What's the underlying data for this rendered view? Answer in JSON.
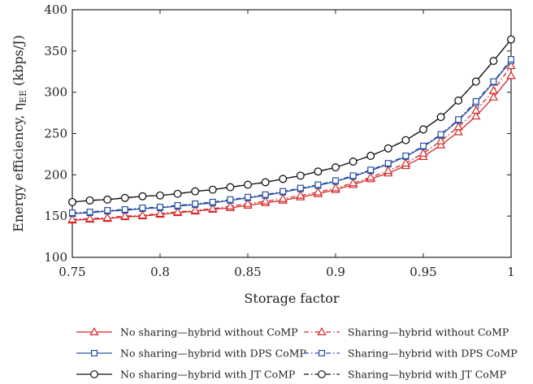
{
  "chart_data": {
    "type": "line",
    "title": "",
    "xlabel": "Storage factor",
    "ylabel": "Energy efficiency, η",
    "ylabel_sub": "EE",
    "ylabel_unit": "(kbps/J)",
    "xlim": [
      0.75,
      1.0
    ],
    "ylim": [
      100,
      400
    ],
    "x_ticks": [
      "0.75",
      "0.8",
      "0.85",
      "0.9",
      "0.95",
      "1"
    ],
    "y_ticks": [
      "100",
      "150",
      "200",
      "250",
      "300",
      "350",
      "400"
    ],
    "grid": false,
    "legend_position": "bottom",
    "x": [
      0.75,
      0.76,
      0.77,
      0.78,
      0.79,
      0.8,
      0.81,
      0.82,
      0.83,
      0.84,
      0.85,
      0.86,
      0.87,
      0.88,
      0.89,
      0.9,
      0.91,
      0.92,
      0.93,
      0.94,
      0.95,
      0.96,
      0.97,
      0.98,
      0.99,
      1.0
    ],
    "series": [
      {
        "name": "No sharing—hybrid without CoMP",
        "color": "#d62728",
        "marker": "triangle",
        "dash": "solid",
        "values": [
          145,
          146,
          147,
          149,
          150,
          152,
          154,
          156,
          158,
          160,
          163,
          166,
          169,
          173,
          177,
          182,
          188,
          195,
          202,
          211,
          222,
          236,
          252,
          271,
          294,
          320
        ]
      },
      {
        "name": "Sharing—hybrid without CoMP",
        "color": "#d62728",
        "marker": "triangle",
        "dash": "dashdot",
        "values": [
          146,
          147,
          148,
          150,
          151,
          153,
          155,
          157,
          159,
          162,
          165,
          168,
          171,
          175,
          179,
          184,
          190,
          197,
          205,
          214,
          226,
          241,
          258,
          278,
          302,
          332
        ]
      },
      {
        "name": "No sharing—hybrid with DPS CoMP",
        "color": "#2c4fa3",
        "marker": "square",
        "dash": "solid",
        "values": [
          153,
          154,
          156,
          157,
          159,
          160,
          162,
          164,
          166,
          169,
          172,
          175,
          179,
          183,
          187,
          192,
          198,
          205,
          213,
          222,
          234,
          248,
          266,
          287,
          312,
          338
        ]
      },
      {
        "name": "Sharing—hybrid with DPS CoMP",
        "color": "#2c4fa3",
        "marker": "square",
        "dash": "dashdot",
        "values": [
          154,
          155,
          157,
          158,
          160,
          161,
          163,
          165,
          167,
          170,
          173,
          176,
          180,
          184,
          188,
          193,
          199,
          206,
          214,
          223,
          235,
          249,
          267,
          289,
          313,
          340
        ]
      },
      {
        "name": "No sharing—hybrid with JT CoMP",
        "color": "#111111",
        "marker": "circle",
        "dash": "solid",
        "values": [
          167,
          169,
          170,
          172,
          174,
          175,
          177,
          180,
          182,
          185,
          188,
          191,
          195,
          199,
          204,
          209,
          216,
          223,
          232,
          242,
          255,
          270,
          290,
          313,
          338,
          364
        ]
      },
      {
        "name": "Sharing—hybrid with JT CoMP",
        "color": "#111111",
        "marker": "circle",
        "dash": "dashdot",
        "values": [
          167,
          169,
          170,
          172,
          174,
          175,
          177,
          180,
          182,
          185,
          188,
          191,
          195,
          199,
          204,
          209,
          216,
          223,
          232,
          242,
          255,
          270,
          290,
          313,
          338,
          364
        ]
      }
    ]
  }
}
